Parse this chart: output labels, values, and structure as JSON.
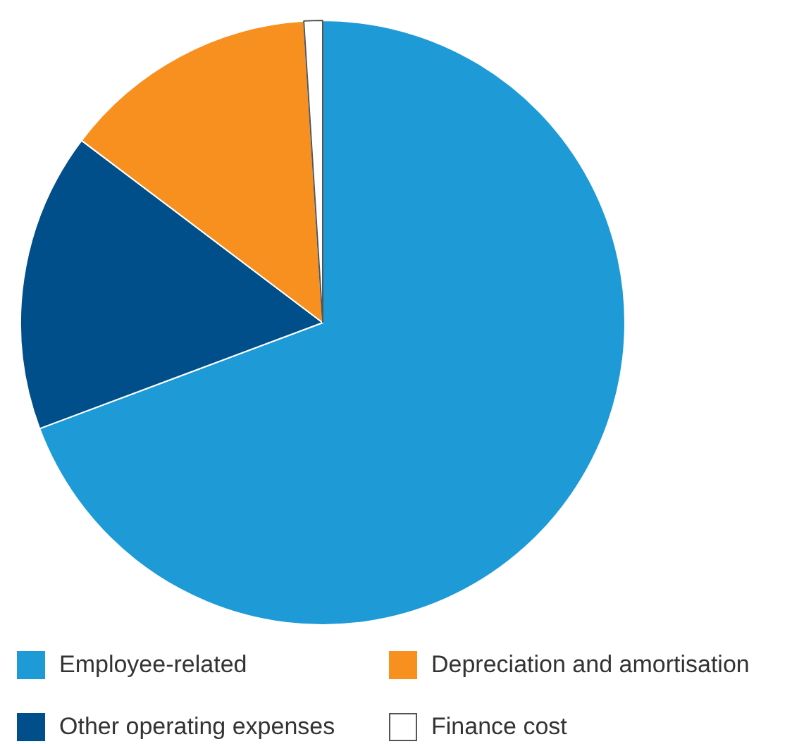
{
  "chart_data": {
    "type": "pie",
    "categories": [
      "Employee-related",
      "Other operating expenses",
      "Depreciation and amortisation",
      "Finance cost"
    ],
    "values": [
      69.3,
      16.0,
      13.7,
      1.0
    ],
    "colors": [
      "#1e9ad6",
      "#004f8a",
      "#f7901e",
      "#ffffff"
    ],
    "legend": "bottom"
  }
}
